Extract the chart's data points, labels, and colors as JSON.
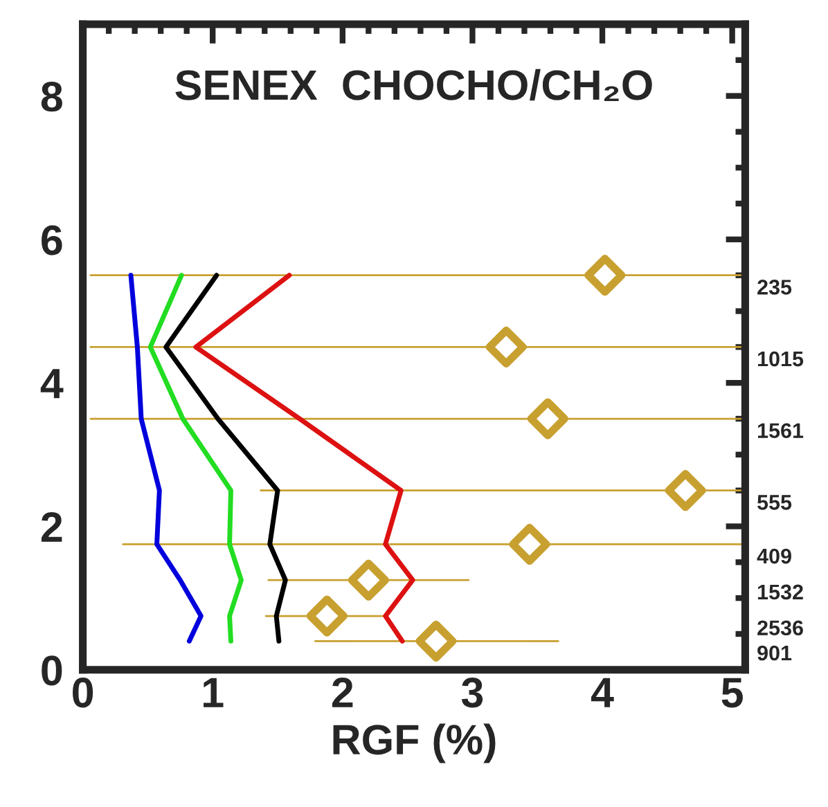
{
  "chart_data": {
    "type": "line",
    "title": "SENEX  CHOCHO/CH₂O",
    "xlabel": "RGF (%)",
    "xlim": [
      0,
      5.1
    ],
    "xticks": [
      0,
      1,
      2,
      3,
      4,
      5
    ],
    "ylim": [
      0,
      9
    ],
    "yticks": [
      0,
      2,
      4,
      6,
      8
    ],
    "grid": false,
    "legend": false,
    "line_style": "solid",
    "series": [
      {
        "color": "#0000dd",
        "x": [
          0.37,
          0.42,
          0.45,
          0.59,
          0.57,
          0.75,
          0.91,
          0.82
        ],
        "values": [
          5.5,
          4.5,
          3.5,
          2.5,
          1.75,
          1.25,
          0.75,
          0.4
        ]
      },
      {
        "color": "#22dd22",
        "x": [
          0.76,
          0.52,
          0.77,
          1.14,
          1.13,
          1.22,
          1.13,
          1.14
        ],
        "values": [
          5.5,
          4.5,
          3.5,
          2.5,
          1.75,
          1.25,
          0.75,
          0.4
        ]
      },
      {
        "color": "#000000",
        "x": [
          1.03,
          0.64,
          1.04,
          1.5,
          1.44,
          1.56,
          1.49,
          1.51
        ],
        "values": [
          5.5,
          4.5,
          3.5,
          2.5,
          1.75,
          1.25,
          0.75,
          0.4
        ]
      },
      {
        "color": "#dd1111",
        "x": [
          1.59,
          0.87,
          1.67,
          2.45,
          2.33,
          2.54,
          2.33,
          2.46
        ],
        "values": [
          5.5,
          4.5,
          3.5,
          2.5,
          1.75,
          1.25,
          0.75,
          0.4
        ]
      },
      {
        "type": "scatter",
        "marker": "diamond",
        "color": "#c8a030",
        "x": [
          4.02,
          3.26,
          3.58,
          4.64,
          3.44,
          2.2,
          1.88,
          2.72
        ],
        "values": [
          5.5,
          4.5,
          3.5,
          2.5,
          1.75,
          1.25,
          0.75,
          0.4
        ],
        "xerrors": [
          [
            0.06,
            5.1
          ],
          [
            0.06,
            5.1
          ],
          [
            0.06,
            5.1
          ],
          [
            1.37,
            5.1
          ],
          [
            0.31,
            5.1
          ],
          [
            1.43,
            2.97
          ],
          [
            1.41,
            2.33
          ],
          [
            1.79,
            3.66
          ]
        ]
      }
    ],
    "annotations": [
      "235",
      "1015",
      "1561",
      "555",
      "409",
      "1532",
      "2536",
      "901"
    ]
  }
}
